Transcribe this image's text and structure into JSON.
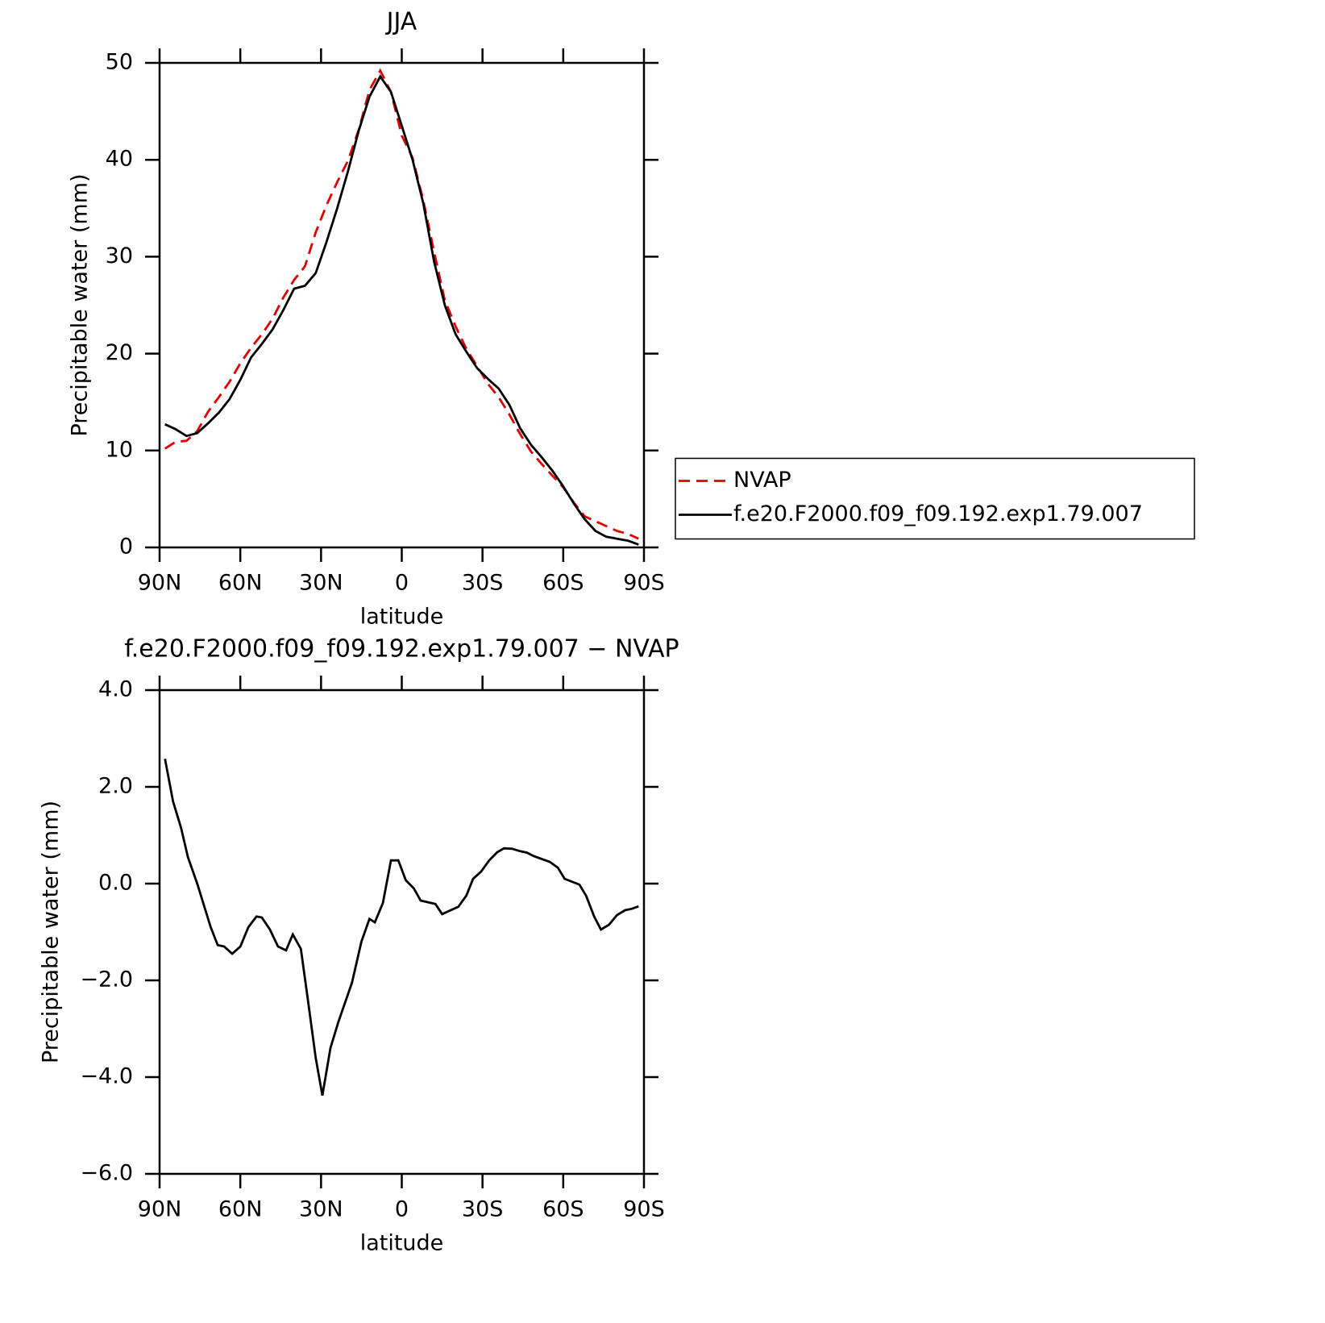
{
  "chart_data": [
    {
      "type": "line",
      "title": "JJA",
      "xlabel": "latitude",
      "ylabel": "Precipitable water (mm)",
      "x": [
        88,
        84,
        80,
        76,
        72,
        68,
        64,
        60,
        56,
        52,
        48,
        44,
        40,
        36,
        32,
        28,
        24,
        20,
        16,
        12,
        8,
        4,
        0,
        -4,
        -8,
        -12,
        -16,
        -20,
        -24,
        -28,
        -32,
        -36,
        -40,
        -44,
        -48,
        -52,
        -56,
        -60,
        -64,
        -68,
        -72,
        -76,
        -80,
        -84,
        -88
      ],
      "series": [
        {
          "name": "NVAP",
          "color": "#e00000",
          "line_style": "dashed",
          "values": [
            10.2,
            10.9,
            11.0,
            12.0,
            14.0,
            15.5,
            17.1,
            19.0,
            20.6,
            22.0,
            23.6,
            25.8,
            27.6,
            29.0,
            32.5,
            35.3,
            37.7,
            39.9,
            43.1,
            47.2,
            49.2,
            47.0,
            42.5,
            40.2,
            35.8,
            30.5,
            25.5,
            22.8,
            20.5,
            18.7,
            16.9,
            15.5,
            13.7,
            11.7,
            9.9,
            8.6,
            7.4,
            6.2,
            4.6,
            3.2,
            2.7,
            2.2,
            1.7,
            1.4,
            0.9
          ]
        },
        {
          "name": "f.e20.F2000.f09_f09.192.exp1.79.007",
          "color": "#000000",
          "line_style": "solid",
          "values": [
            12.7,
            12.2,
            11.5,
            11.8,
            12.8,
            13.9,
            15.3,
            17.3,
            19.6,
            21.0,
            22.5,
            24.5,
            26.7,
            27.0,
            28.3,
            31.5,
            35.0,
            38.8,
            43.0,
            46.5,
            48.6,
            47.0,
            43.5,
            40.0,
            35.5,
            29.5,
            25.0,
            22.0,
            20.2,
            18.5,
            17.4,
            16.4,
            14.7,
            12.3,
            10.6,
            9.3,
            7.9,
            6.3,
            4.5,
            2.9,
            1.7,
            1.1,
            0.9,
            0.7,
            0.3
          ]
        }
      ],
      "xlim": [
        90,
        -90
      ],
      "xticks": [
        {
          "value": 90,
          "label": "90N"
        },
        {
          "value": 60,
          "label": "60N"
        },
        {
          "value": 30,
          "label": "30N"
        },
        0,
        {
          "value": -30,
          "label": "30S"
        },
        {
          "value": -60,
          "label": "60S"
        },
        {
          "value": -90,
          "label": "90S"
        }
      ],
      "ylim": [
        0,
        50
      ],
      "yticks": [
        0,
        10,
        20,
        30,
        40,
        50
      ],
      "legend": "right"
    },
    {
      "type": "line",
      "title": "f.e20.F2000.f09_f09.192.exp1.79.007 − NVAP",
      "xlabel": "latitude",
      "ylabel": "Precipitable water (mm)",
      "x": [
        88,
        85,
        82,
        79.5,
        76,
        71,
        68.4,
        66,
        63,
        60,
        57,
        54,
        52,
        49,
        46,
        43,
        40.5,
        37.5,
        35,
        32,
        29.5,
        26.5,
        23.5,
        18.5,
        15,
        12,
        10,
        7,
        4,
        1.3,
        -1.5,
        -4.5,
        -7,
        -12.5,
        -15,
        -21,
        -24,
        -26.5,
        -29.5,
        -32.5,
        -35.5,
        -38,
        -41,
        -44,
        -46.5,
        -49,
        -55,
        -58,
        -60.5,
        -66,
        -68.5,
        -71.5,
        -74,
        -77,
        -80,
        -83,
        -85.5,
        -88
      ],
      "values": [
        2.58,
        1.7,
        1.15,
        0.55,
        0,
        -0.9,
        -1.27,
        -1.3,
        -1.45,
        -1.3,
        -0.9,
        -0.68,
        -0.7,
        -0.95,
        -1.3,
        -1.38,
        -1.05,
        -1.35,
        -2.35,
        -3.6,
        -4.38,
        -3.4,
        -2.85,
        -2.05,
        -1.2,
        -0.73,
        -0.8,
        -0.4,
        0.48,
        0.48,
        0.07,
        -0.1,
        -0.35,
        -0.42,
        -0.63,
        -0.48,
        -0.25,
        0.1,
        0.25,
        0.48,
        0.65,
        0.73,
        0.72,
        0.67,
        0.64,
        0.57,
        0.45,
        0.33,
        0.1,
        -0.02,
        -0.25,
        -0.68,
        -0.95,
        -0.85,
        -0.65,
        -0.55,
        -0.52,
        -0.47
      ],
      "color": "#000000",
      "xlim": [
        90,
        -90
      ],
      "xticks": [
        {
          "value": 90,
          "label": "90N"
        },
        {
          "value": 60,
          "label": "60N"
        },
        {
          "value": 30,
          "label": "30N"
        },
        0,
        {
          "value": -30,
          "label": "30S"
        },
        {
          "value": -60,
          "label": "60S"
        },
        {
          "value": -90,
          "label": "90S"
        }
      ],
      "ylim": [
        -6,
        4
      ],
      "yticks": [
        {
          "value": -6,
          "label": "−6.0"
        },
        {
          "value": -4,
          "label": "−4.0"
        },
        {
          "value": -2,
          "label": "−2.0"
        },
        {
          "value": 0,
          "label": "0.0"
        },
        {
          "value": 2,
          "label": "2.0"
        },
        {
          "value": 4,
          "label": "4.0"
        }
      ]
    }
  ]
}
